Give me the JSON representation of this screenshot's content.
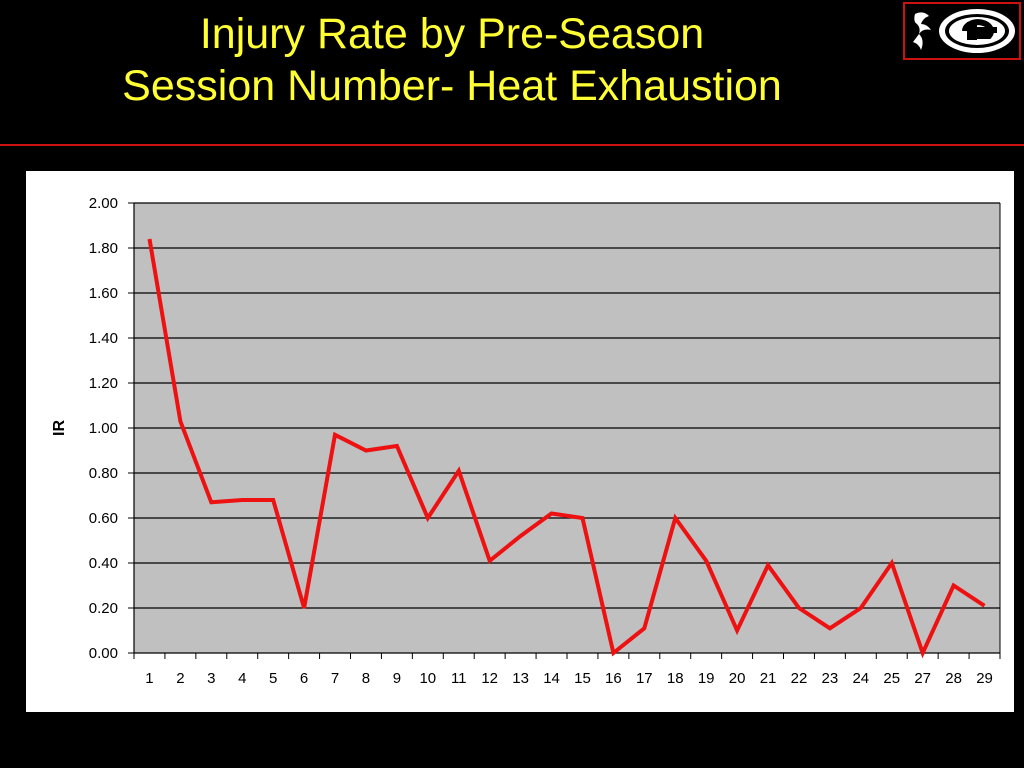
{
  "slide": {
    "title_line1": "Injury Rate by Pre-Season",
    "title_line2": "Session Number- Heat Exhaustion",
    "logo": {
      "icon": "georgia-g-logo-icon",
      "border_color": "#cc1111"
    }
  },
  "colors": {
    "background": "#000000",
    "title": "#ffff33",
    "divider": "#cc1111",
    "plot_area": "#c0c0c0",
    "line": "#ee1111"
  },
  "chart_data": {
    "type": "line",
    "title": "",
    "xlabel": "",
    "ylabel": "IR",
    "categories": [
      "1",
      "2",
      "3",
      "4",
      "5",
      "6",
      "7",
      "8",
      "9",
      "10",
      "11",
      "12",
      "13",
      "14",
      "15",
      "16",
      "17",
      "18",
      "19",
      "20",
      "21",
      "22",
      "23",
      "24",
      "25",
      "27",
      "28",
      "29"
    ],
    "series": [
      {
        "values": [
          1.84,
          1.03,
          0.67,
          0.68,
          0.68,
          0.2,
          0.97,
          0.9,
          0.92,
          0.6,
          0.81,
          0.41,
          0.52,
          0.62,
          0.6,
          0.0,
          0.11,
          0.6,
          0.41,
          0.1,
          0.39,
          0.2,
          0.11,
          0.2,
          0.4,
          0.0,
          0.3,
          0.21
        ],
        "color": "#ee1111"
      }
    ],
    "ylim": [
      0,
      2.0
    ],
    "yticks": [
      "0.00",
      "0.20",
      "0.40",
      "0.60",
      "0.80",
      "1.00",
      "1.20",
      "1.40",
      "1.60",
      "1.80",
      "2.00"
    ],
    "grid": true,
    "legend": "none"
  }
}
